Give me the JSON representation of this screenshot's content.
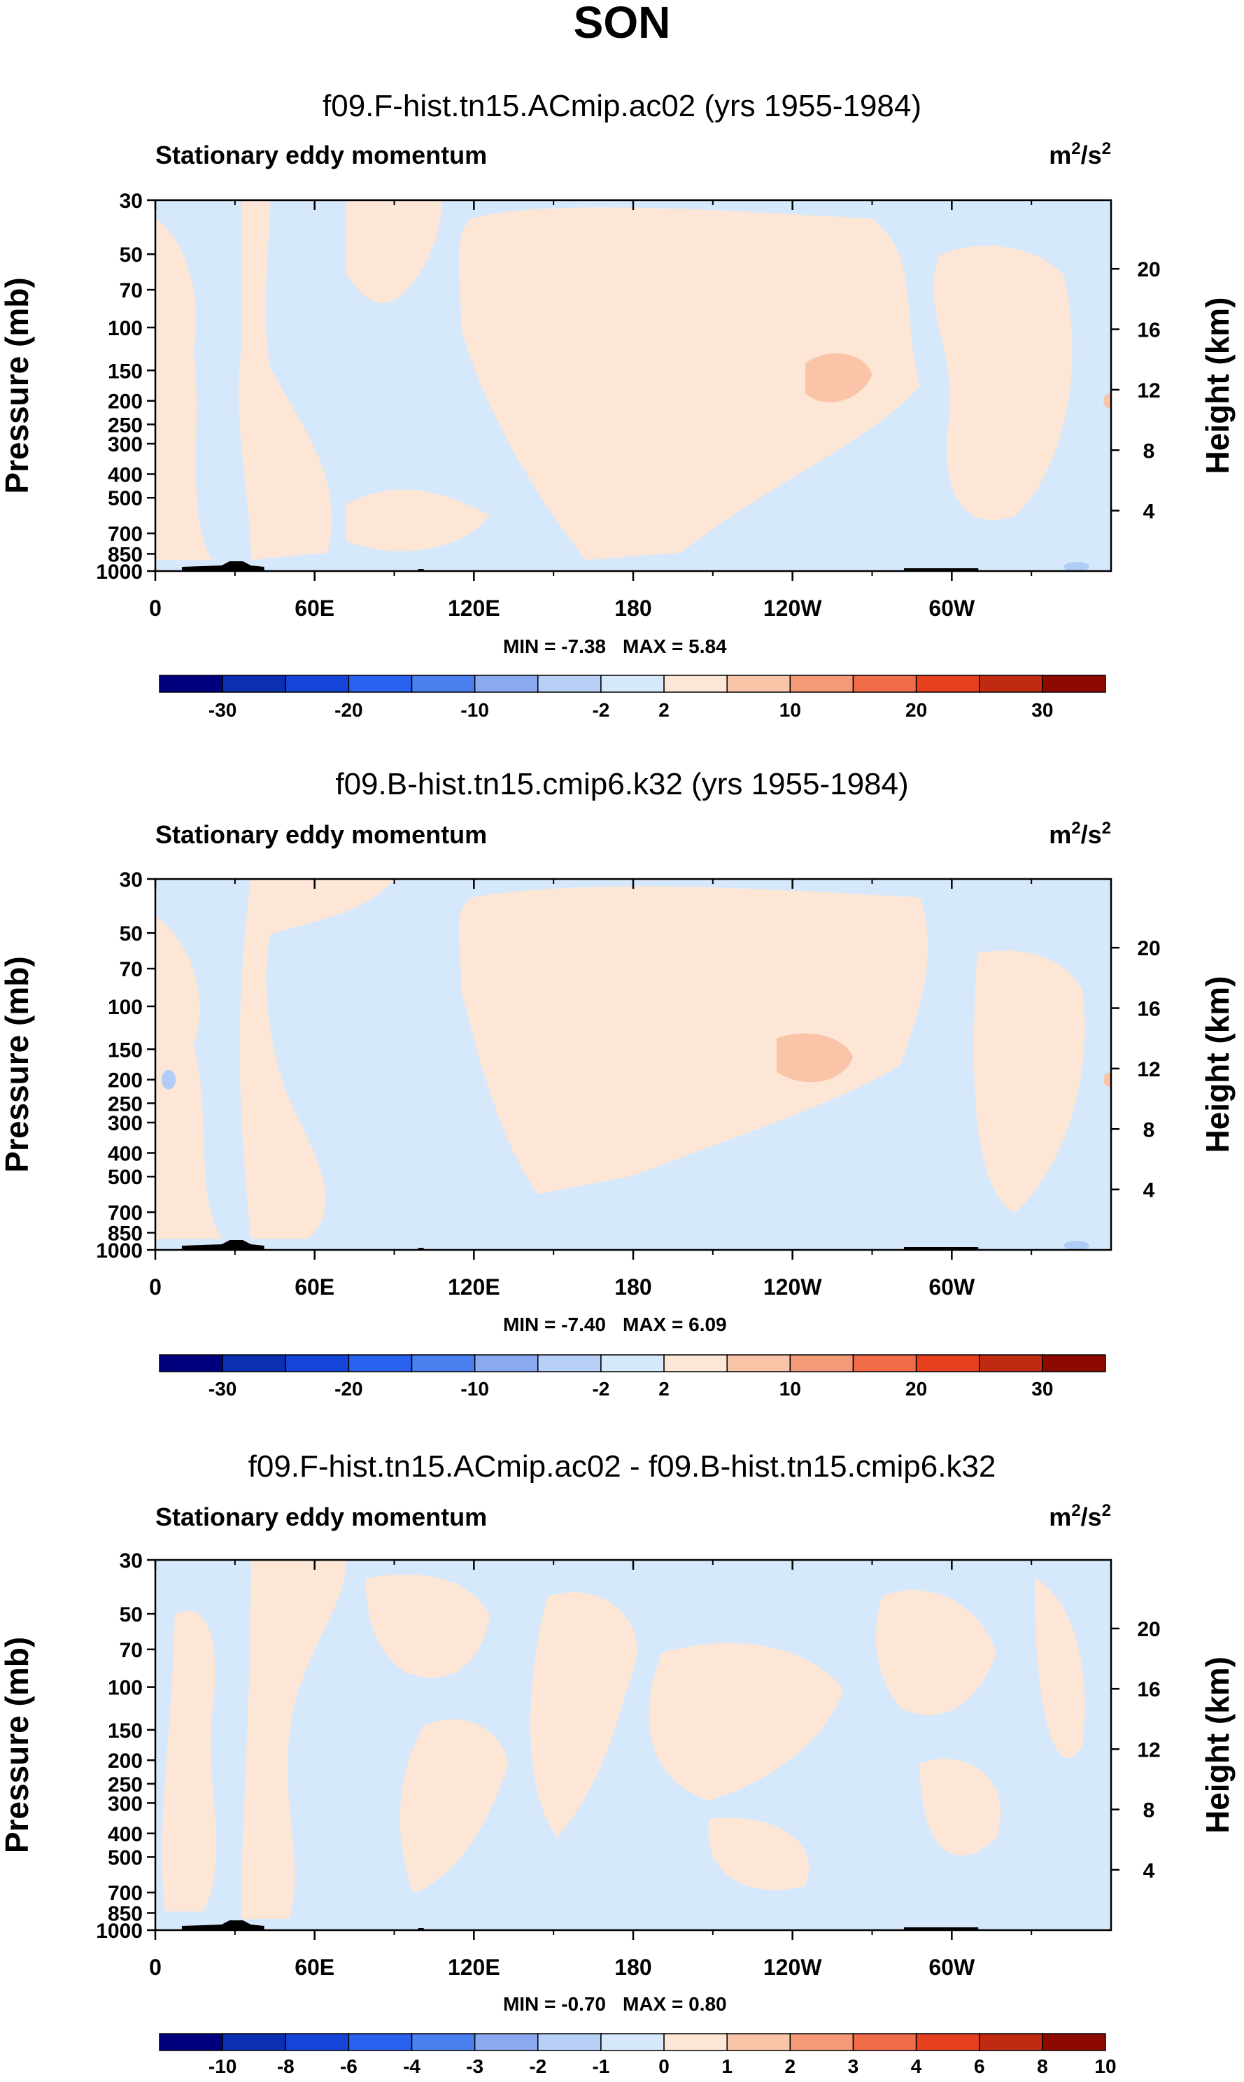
{
  "figure": {
    "title": "SON"
  },
  "colors": {
    "pos_light": "#fde6d5",
    "pos_mid": "#f9c4a8",
    "neg_light": "#d6e8fb",
    "neg_mid": "#b0cdf7",
    "topo": "#000000"
  },
  "colorbar_main": {
    "colors": [
      "#00007f",
      "#0a2fb0",
      "#1545d8",
      "#2a62f0",
      "#4a7fef",
      "#8aa9f1",
      "#b8cff7",
      "#d6e8fb",
      "#fde6d5",
      "#f9c4a8",
      "#f59a78",
      "#f06c48",
      "#e64020",
      "#c02a10",
      "#8e0a00"
    ],
    "labels": [
      "-30",
      "-20",
      "-10",
      "-2",
      "2",
      "10",
      "20",
      "30"
    ]
  },
  "colorbar_diff": {
    "colors": [
      "#00007f",
      "#0a2fb0",
      "#1545d8",
      "#2a62f0",
      "#4a7fef",
      "#8aa9f1",
      "#b8cff7",
      "#d6e8fb",
      "#fde6d5",
      "#f9c4a8",
      "#f59a78",
      "#f06c48",
      "#e64020",
      "#c02a10",
      "#8e0a00"
    ],
    "labels": [
      "-10",
      "-8",
      "-6",
      "-4",
      "-3",
      "-2",
      "-1",
      "0",
      "1",
      "2",
      "3",
      "4",
      "6",
      "8",
      "10"
    ]
  },
  "chart_data": [
    {
      "type": "heatmap",
      "title": "f09.F-hist.tn15.ACmip.ac02 (yrs 1955-1984)",
      "subtitle_left": "Stationary eddy momentum",
      "units": "m²/s²",
      "units_base": "m",
      "units_sup1": "2",
      "units_mid": "/s",
      "units_sup2": "2",
      "xlabel": "",
      "ylabel": "Pressure (mb)",
      "ylabel_right": "Height (km)",
      "x_ticks": [
        "0",
        "60E",
        "120E",
        "180",
        "120W",
        "60W"
      ],
      "x_tick_values": [
        0,
        60,
        120,
        180,
        240,
        300
      ],
      "xlim": [
        0,
        360
      ],
      "y_ticks": [
        "30",
        "50",
        "70",
        "100",
        "150",
        "200",
        "250",
        "300",
        "400",
        "500",
        "700",
        "850",
        "1000"
      ],
      "y_tick_values": [
        30,
        50,
        70,
        100,
        150,
        200,
        250,
        300,
        400,
        500,
        700,
        850,
        1000
      ],
      "ylim": [
        1000,
        30
      ],
      "right_ticks": [
        "20",
        "16",
        "12",
        "8",
        "4"
      ],
      "right_tick_values": [
        20,
        16,
        12,
        8,
        4
      ],
      "min_label": "MIN =  -7.38",
      "max_label": "MAX =   5.84",
      "min": -7.38,
      "max": 5.84,
      "contour_levels": [
        -30,
        -20,
        -10,
        -2,
        2,
        10,
        20,
        30
      ]
    },
    {
      "type": "heatmap",
      "title": "f09.B-hist.tn15.cmip6.k32 (yrs 1955-1984)",
      "subtitle_left": "Stationary eddy momentum",
      "units": "m²/s²",
      "units_base": "m",
      "units_sup1": "2",
      "units_mid": "/s",
      "units_sup2": "2",
      "xlabel": "",
      "ylabel": "Pressure (mb)",
      "ylabel_right": "Height (km)",
      "x_ticks": [
        "0",
        "60E",
        "120E",
        "180",
        "120W",
        "60W"
      ],
      "x_tick_values": [
        0,
        60,
        120,
        180,
        240,
        300
      ],
      "xlim": [
        0,
        360
      ],
      "y_ticks": [
        "30",
        "50",
        "70",
        "100",
        "150",
        "200",
        "250",
        "300",
        "400",
        "500",
        "700",
        "850",
        "1000"
      ],
      "y_tick_values": [
        30,
        50,
        70,
        100,
        150,
        200,
        250,
        300,
        400,
        500,
        700,
        850,
        1000
      ],
      "ylim": [
        1000,
        30
      ],
      "right_ticks": [
        "20",
        "16",
        "12",
        "8",
        "4"
      ],
      "right_tick_values": [
        20,
        16,
        12,
        8,
        4
      ],
      "min_label": "MIN =  -7.40",
      "max_label": "MAX =   6.09",
      "min": -7.4,
      "max": 6.09,
      "contour_levels": [
        -30,
        -20,
        -10,
        -2,
        2,
        10,
        20,
        30
      ]
    },
    {
      "type": "heatmap",
      "title": "f09.F-hist.tn15.ACmip.ac02 - f09.B-hist.tn15.cmip6.k32",
      "subtitle_left": "Stationary eddy momentum",
      "units": "m²/s²",
      "units_base": "m",
      "units_sup1": "2",
      "units_mid": "/s",
      "units_sup2": "2",
      "xlabel": "",
      "ylabel": "Pressure (mb)",
      "ylabel_right": "Height (km)",
      "x_ticks": [
        "0",
        "60E",
        "120E",
        "180",
        "120W",
        "60W"
      ],
      "x_tick_values": [
        0,
        60,
        120,
        180,
        240,
        300
      ],
      "xlim": [
        0,
        360
      ],
      "y_ticks": [
        "30",
        "50",
        "70",
        "100",
        "150",
        "200",
        "250",
        "300",
        "400",
        "500",
        "700",
        "850",
        "1000"
      ],
      "y_tick_values": [
        30,
        50,
        70,
        100,
        150,
        200,
        250,
        300,
        400,
        500,
        700,
        850,
        1000
      ],
      "ylim": [
        1000,
        30
      ],
      "right_ticks": [
        "20",
        "16",
        "12",
        "8",
        "4"
      ],
      "right_tick_values": [
        20,
        16,
        12,
        8,
        4
      ],
      "min_label": "MIN =  -0.70",
      "max_label": "MAX =   0.80",
      "min": -0.7,
      "max": 0.8,
      "contour_levels": [
        -10,
        -8,
        -6,
        -4,
        -3,
        -2,
        -1,
        0,
        1,
        2,
        3,
        4,
        6,
        8,
        10
      ]
    }
  ]
}
